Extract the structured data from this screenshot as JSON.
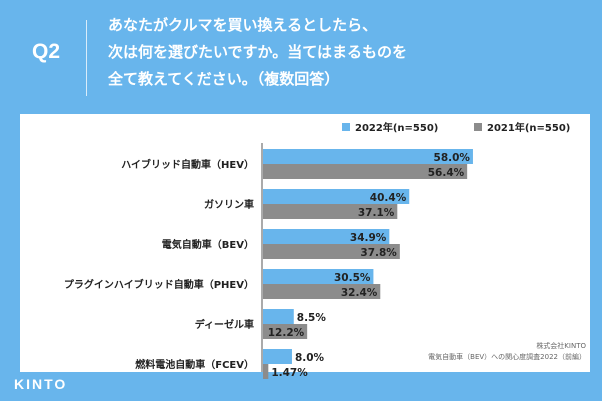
{
  "question": {
    "label": "Q2",
    "lines": [
      "あなたがクルマを買い換えるとしたら、",
      "次は何を選びたいですか。当てはまるものを",
      "全て教えてください。（複数回答）"
    ]
  },
  "brand": "KINTO",
  "colors": {
    "background": "#68b5ec",
    "series_2022": "#68b5ec",
    "series_2021": "#8c8c8c",
    "text": "#222222"
  },
  "chart_data": {
    "type": "bar",
    "orientation": "horizontal",
    "categories": [
      "ハイブリッド自動車（HEV）",
      "ガソリン車",
      "電気自動車（BEV）",
      "プラグインハイブリッド自動車（PHEV）",
      "ディーゼル車",
      "燃料電池自動車（FCEV）"
    ],
    "series": [
      {
        "name": "2022年(n=550)",
        "values": [
          58.0,
          40.4,
          34.9,
          30.5,
          8.5,
          8.0
        ],
        "labels": [
          "58.0%",
          "40.4%",
          "34.9%",
          "30.5%",
          "8.5%",
          "8.0%"
        ]
      },
      {
        "name": "2021年(n=550)",
        "values": [
          56.4,
          37.1,
          37.8,
          32.4,
          12.2,
          1.47
        ],
        "labels": [
          "56.4%",
          "37.1%",
          "37.8%",
          "32.4%",
          "12.2%",
          "1.47%"
        ]
      }
    ],
    "xlim": [
      0,
      100
    ],
    "legend_position": "top-right",
    "source": [
      "株式会社KINTO",
      "電気自動車（BEV）への関心度調査2022（前編）"
    ]
  }
}
